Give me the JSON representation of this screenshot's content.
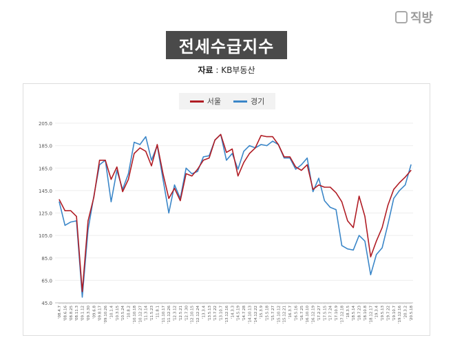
{
  "logo": {
    "text": "직방"
  },
  "header": {
    "title": "전세수급지수",
    "source_label": "자료",
    "source_value": " : KB부동산"
  },
  "chart_data": {
    "type": "line",
    "title": "전세수급지수",
    "legend_position": "top-center",
    "grid": true,
    "ylim": [
      45,
      205
    ],
    "y_ticks": [
      "205.0",
      "185.0",
      "165.0",
      "145.0",
      "125.0",
      "105.0",
      "85.0",
      "65.0",
      "45.0"
    ],
    "categories": [
      "'08.4.7",
      "'08.6.16",
      "'08.8.25",
      "'08.11.3",
      "'09.1.12",
      "'09.3.30",
      "'09.6.8",
      "'09.8.17",
      "'09.10.26",
      "'10.1.4",
      "'10.3.15",
      "'10.5.24",
      "'10.8.2",
      "'10.10.18",
      "'10.12.27",
      "'11.3.14",
      "'11.5.23",
      "'11.8.1",
      "'11.10.17",
      "'11.12.26",
      "'12.3.12",
      "'12.5.21",
      "'12.7.30",
      "'12.10.15",
      "'12.12.24",
      "'13.3.4",
      "'13.5.13",
      "'13.7.22",
      "'13.10.7",
      "'13.12.16",
      "'14.3.3",
      "'14.5.19",
      "'14.7.28",
      "'14.10.13",
      "'14.12.22",
      "'15.3.9",
      "'15.5.18",
      "'15.7.27",
      "'15.10.12",
      "'15.12.21",
      "'16.3.7",
      "'16.5.16",
      "'16.7.25",
      "'16.10.10",
      "'16.12.19",
      "'17.2.27",
      "'17.5.15",
      "'17.7.24",
      "'17.10.9",
      "'17.12.18",
      "'18.3.5",
      "'18.5.14",
      "'18.7.23",
      "'18.10.8",
      "'18.12.17",
      "'19.3.4",
      "'19.5.13",
      "'19.7.22",
      "'19.10.7",
      "'19.12.16",
      "'20.3.2",
      "'20.5.18"
    ],
    "series": [
      {
        "name": "서울",
        "color": "#b01c24",
        "values": [
          137,
          127,
          127,
          122,
          55,
          118,
          139,
          172,
          172,
          155,
          166,
          144,
          155,
          178,
          183,
          180,
          167,
          186,
          160,
          138,
          147,
          136,
          160,
          158,
          164,
          172,
          174,
          190,
          195,
          179,
          182,
          158,
          170,
          178,
          183,
          194,
          193,
          193,
          186,
          175,
          175,
          166,
          163,
          168,
          146,
          150,
          148,
          148,
          143,
          135,
          118,
          112,
          140,
          122,
          86,
          100,
          112,
          132,
          146,
          152,
          157,
          163
        ]
      },
      {
        "name": "경기",
        "color": "#3a86c8",
        "values": [
          135,
          114,
          117,
          118,
          50,
          110,
          140,
          168,
          172,
          135,
          163,
          146,
          160,
          188,
          186,
          193,
          172,
          185,
          155,
          125,
          150,
          138,
          165,
          160,
          162,
          175,
          176,
          190,
          195,
          172,
          178,
          164,
          180,
          185,
          183,
          186,
          185,
          189,
          186,
          174,
          174,
          164,
          168,
          174,
          144,
          156,
          136,
          130,
          128,
          96,
          93,
          92,
          105,
          100,
          70,
          88,
          94,
          115,
          138,
          145,
          150,
          168
        ]
      }
    ]
  }
}
